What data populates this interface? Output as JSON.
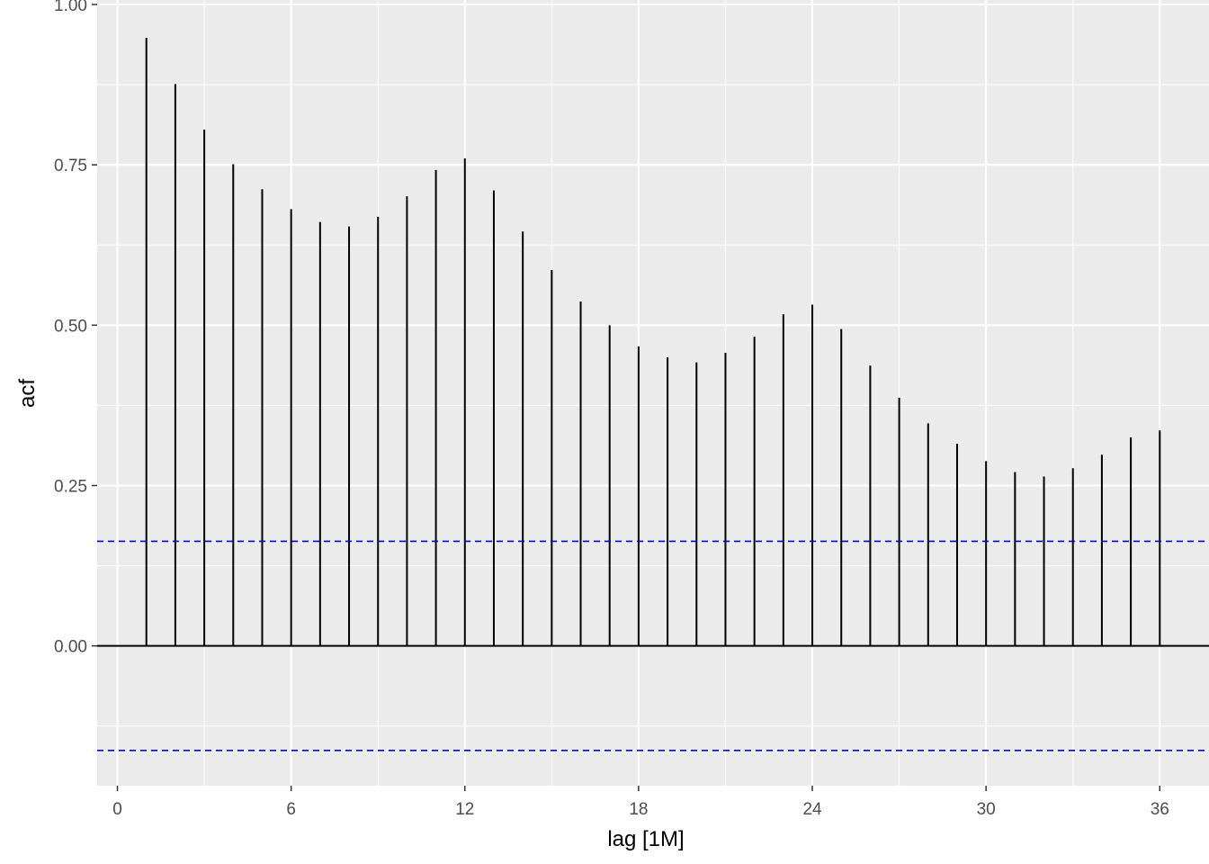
{
  "chart_data": {
    "type": "bar",
    "title": "",
    "xlabel": "lag [1M]",
    "ylabel": "acf",
    "x": [
      1,
      2,
      3,
      4,
      5,
      6,
      7,
      8,
      9,
      10,
      11,
      12,
      13,
      14,
      15,
      16,
      17,
      18,
      19,
      20,
      21,
      22,
      23,
      24,
      25,
      26,
      27,
      28,
      29,
      30,
      31,
      32,
      33,
      34,
      35,
      36
    ],
    "values": [
      0.948,
      0.876,
      0.805,
      0.751,
      0.712,
      0.681,
      0.661,
      0.654,
      0.669,
      0.701,
      0.742,
      0.76,
      0.71,
      0.646,
      0.586,
      0.537,
      0.5,
      0.467,
      0.45,
      0.442,
      0.457,
      0.482,
      0.517,
      0.532,
      0.494,
      0.437,
      0.387,
      0.347,
      0.315,
      0.288,
      0.271,
      0.264,
      0.277,
      0.298,
      0.325,
      0.336
    ],
    "confidence_bound": 0.163,
    "xlim": [
      -0.7,
      37.7
    ],
    "ylim": [
      -0.218,
      1.007
    ],
    "x_ticks": [
      0,
      6,
      12,
      18,
      24,
      30,
      36
    ],
    "x_tick_labels": [
      "0",
      "6",
      "12",
      "18",
      "24",
      "30",
      "36"
    ],
    "y_ticks": [
      0,
      0.25,
      0.5,
      0.75,
      1.0
    ],
    "y_tick_labels": [
      "0.00",
      "0.25",
      "0.50",
      "0.75",
      "1.00"
    ],
    "grid": true,
    "colors": {
      "panel": "#ebebeb",
      "grid": "#ffffff",
      "bars": "#000000",
      "confidence": "#0000cc"
    }
  }
}
